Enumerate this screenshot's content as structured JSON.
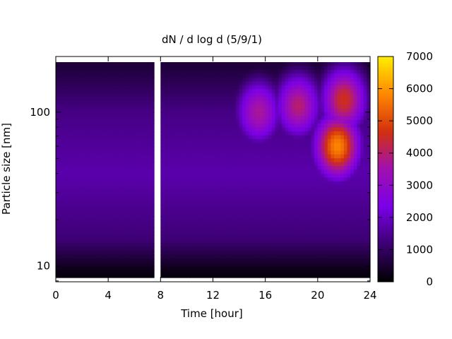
{
  "chart_data": {
    "type": "heatmap",
    "title": "dN / d log d (5/9/1)",
    "xlabel": "Time [hour]",
    "ylabel": "Particle size [nm]",
    "xlim": [
      0,
      24
    ],
    "ylim": [
      7.9,
      230
    ],
    "yscale": "log",
    "xticks": [
      "0",
      "4",
      "8",
      "12",
      "16",
      "20",
      "24"
    ],
    "yticks": [
      "10",
      "100"
    ],
    "colorbar": {
      "ticks": [
        "0",
        "1000",
        "2000",
        "3000",
        "4000",
        "5000",
        "6000",
        "7000"
      ],
      "range": [
        0,
        7000
      ],
      "colormap": [
        "#000000",
        "#3c0072",
        "#7a00e6",
        "#a010b0",
        "#d23010",
        "#ff8800",
        "#ffee00"
      ]
    },
    "data_gap": {
      "from_hour": 7.5,
      "to_hour": 8.0
    },
    "hotspots": [
      {
        "hour": 15.5,
        "size_nm": 100,
        "value": 3700
      },
      {
        "hour": 18.5,
        "size_nm": 110,
        "value": 4000
      },
      {
        "hour": 21.5,
        "size_nm": 60,
        "value": 5800
      },
      {
        "hour": 22.0,
        "size_nm": 120,
        "value": 4600
      }
    ],
    "background": [
      {
        "size_nm": 200,
        "value": 600
      },
      {
        "size_nm": 100,
        "value": 1350
      },
      {
        "size_nm": 40,
        "value": 1750
      },
      {
        "size_nm": 15,
        "value": 1200
      },
      {
        "size_nm": 9,
        "value": 150
      }
    ],
    "grid": false,
    "legend": "colorbar-right"
  }
}
